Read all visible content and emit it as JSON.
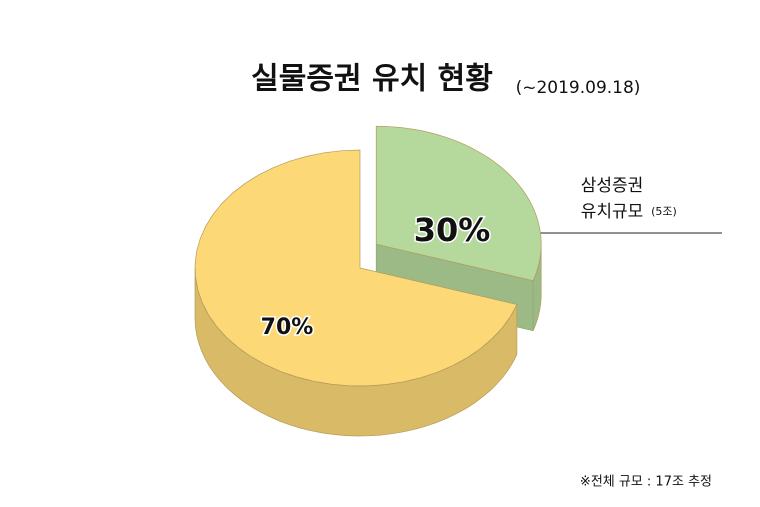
{
  "chart_data": {
    "type": "pie",
    "title": "실물증권 유치 현황",
    "subtitle": "(~2019.09.18)",
    "categories": [
      "삼성증권 유치규모",
      null
    ],
    "values": [
      30,
      70
    ],
    "value_labels": [
      "30%",
      "70%"
    ],
    "colors": [
      "#b5d89c",
      "#fcd877"
    ],
    "callout": {
      "line1": "삼성증권",
      "line2": "유치규모",
      "note": "(5조)"
    },
    "footnote": "※전체 규모 : 17조 추정"
  }
}
